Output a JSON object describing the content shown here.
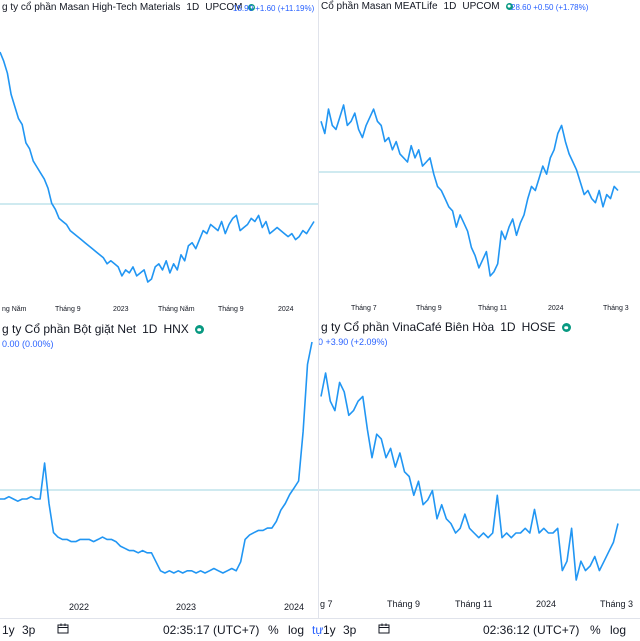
{
  "colors": {
    "line": "#2196f3",
    "base": "#9fd5e0",
    "quote": "#2962ff",
    "dot": "#089981"
  },
  "panels": [
    {
      "title": "g ty cổ phần Masan High-Tech Materials",
      "interval": "1D",
      "exchange": "UPCOM",
      "quote": "15.90 +1.60 (+11.19%)",
      "xticks": [
        "ng Năm",
        "Tháng 9",
        "2023",
        "Tháng Năm",
        "Tháng 9",
        "2024"
      ]
    },
    {
      "title": "Cổ phần Masan MEATLife",
      "interval": "1D",
      "exchange": "UPCOM",
      "quote": "28.60 +0.50 (+1.78%)",
      "xticks": [
        "Tháng 7",
        "Tháng 9",
        "Tháng 11",
        "2024",
        "Tháng 3"
      ]
    },
    {
      "title": "g ty Cổ phần Bột giặt Net",
      "interval": "1D",
      "exchange": "HNX",
      "quote": "0.00 (0.00%)",
      "xticks": [
        "2022",
        "2023",
        "2024"
      ]
    },
    {
      "title": "g ty Cổ phần VinaCafé Biên Hòa",
      "interval": "1D",
      "exchange": "HOSE",
      "quote": "0 +3.90 (+2.09%)",
      "xticks": [
        "g 7",
        "Tháng 9",
        "Tháng 11",
        "2024",
        "Tháng 3"
      ]
    }
  ],
  "bottom_left": {
    "range1": "1y",
    "range2": "3p",
    "time": "02:35:17 (UTC+7)",
    "percent": "%",
    "log": "log",
    "auto": "tự"
  },
  "bottom_right": {
    "range1": "1y",
    "range2": "3p",
    "time": "02:36:12 (UTC+7)",
    "percent": "%",
    "log": "log",
    "auto": "tự"
  },
  "chart_data": [
    {
      "type": "line",
      "series": [
        {
          "values": [
            100,
            97,
            93,
            86,
            82,
            78,
            76,
            70,
            68,
            64,
            62,
            60,
            58,
            55,
            50,
            48,
            45,
            44,
            43,
            41,
            40,
            39,
            38,
            37,
            36,
            35,
            34,
            33,
            32,
            30,
            31,
            30,
            29,
            26,
            28,
            27,
            29,
            26,
            27,
            28,
            24,
            25,
            29,
            30,
            28,
            31,
            27,
            30,
            28,
            33,
            31,
            36,
            37,
            35,
            38,
            41,
            40,
            43,
            42,
            41,
            44,
            40,
            43,
            45,
            46,
            41,
            42,
            43,
            45,
            44,
            46,
            42,
            44,
            40,
            41,
            42,
            41,
            40,
            39,
            40,
            38,
            39,
            41,
            40,
            42,
            44
          ]
        }
      ]
    },
    {
      "type": "line",
      "series": [
        {
          "values": [
            71,
            68,
            74,
            70,
            69,
            72,
            75,
            70,
            71,
            73,
            69,
            67,
            70,
            72,
            74,
            71,
            70,
            66,
            67,
            64,
            66,
            63,
            62,
            61,
            65,
            62,
            64,
            60,
            61,
            62,
            58,
            55,
            54,
            52,
            50,
            49,
            45,
            48,
            46,
            44,
            40,
            38,
            35,
            37,
            39,
            33,
            34,
            36,
            44,
            42,
            45,
            47,
            43,
            46,
            48,
            52,
            55,
            54,
            57,
            60,
            58,
            62,
            64,
            68,
            70,
            66,
            63,
            61,
            59,
            56,
            53,
            54,
            52,
            51,
            54,
            50,
            53,
            52,
            55,
            54
          ]
        }
      ]
    },
    {
      "type": "line",
      "series": [
        {
          "values": [
            30,
            30,
            31,
            30,
            29,
            30,
            30,
            31,
            30,
            30,
            46,
            28,
            15,
            13,
            12,
            12,
            11,
            11,
            12,
            12,
            12,
            11,
            12,
            13,
            12,
            12,
            11,
            9,
            8,
            7,
            7,
            6,
            7,
            6,
            6,
            2,
            -2,
            -3,
            -2,
            -3,
            -2,
            -3,
            -2,
            -2,
            -3,
            -2,
            -3,
            -2,
            -1,
            -2,
            -3,
            -2,
            -1,
            -2,
            2,
            12,
            14,
            15,
            16,
            16,
            17,
            17,
            20,
            25,
            28,
            32,
            35,
            38,
            60,
            90,
            100
          ]
        }
      ]
    },
    {
      "type": "line",
      "series": [
        {
          "values": [
            73,
            78,
            72,
            70,
            76,
            74,
            69,
            70,
            72,
            73,
            66,
            60,
            65,
            64,
            60,
            62,
            58,
            61,
            57,
            56,
            52,
            55,
            50,
            51,
            53,
            47,
            50,
            47,
            46,
            44,
            45,
            48,
            45,
            44,
            43,
            44,
            43,
            44,
            52,
            43,
            44,
            43,
            44,
            44,
            45,
            44,
            49,
            44,
            45,
            44,
            44,
            45,
            36,
            38,
            45,
            34,
            38,
            36,
            37,
            39,
            36,
            38,
            40,
            42,
            46
          ]
        }
      ]
    }
  ]
}
